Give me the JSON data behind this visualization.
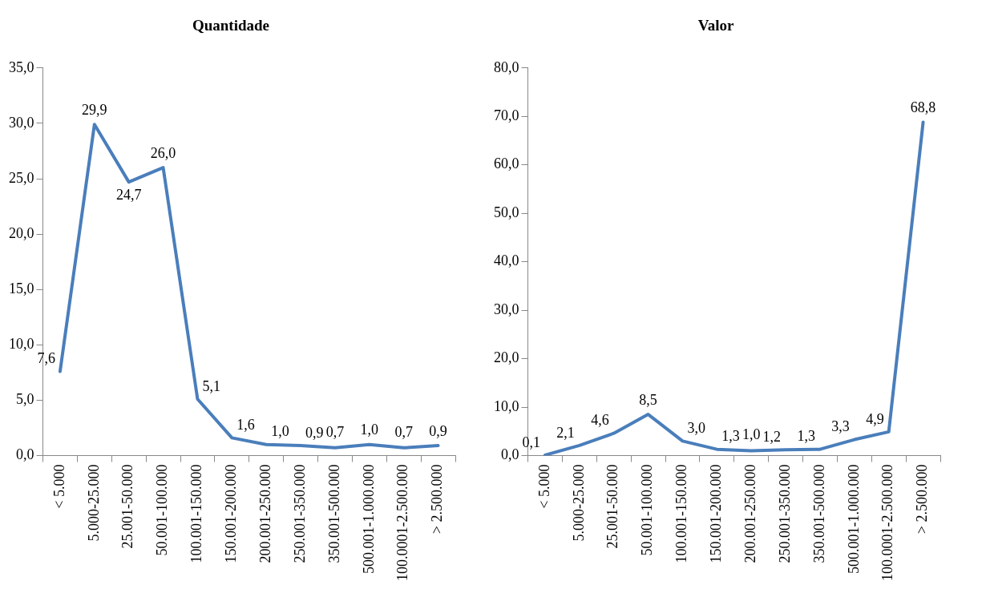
{
  "chart_data": [
    {
      "type": "line",
      "title": "Quantidade",
      "categories": [
        "< 5.000",
        "5.000-25.000",
        "25.001-50.000",
        "50.001-100.000",
        "100.001-150.000",
        "150.001-200.000",
        "200.001-250.000",
        "250.001-350.000",
        "350.001-500.000",
        "500.001-1.000.000",
        "100.0001-2.500.000",
        "> 2.500.000"
      ],
      "series": [
        {
          "color": "#4a7ebb",
          "values": [
            7.6,
            29.9,
            24.7,
            26.0,
            5.1,
            1.6,
            1.0,
            0.9,
            0.7,
            1.0,
            0.7,
            0.9
          ],
          "value_labels": [
            "7,6",
            "29,9",
            "24,7",
            "26,0",
            "5,1",
            "1,6",
            "1,0",
            "0,9",
            "0,7",
            "1,0",
            "0,7",
            "0,9"
          ]
        }
      ],
      "ylim": [
        0,
        35
      ],
      "yticks": [
        {
          "value": 0,
          "label": "0,0"
        },
        {
          "value": 5,
          "label": "5,0"
        },
        {
          "value": 10,
          "label": "10,0"
        },
        {
          "value": 15,
          "label": "15,0"
        },
        {
          "value": 20,
          "label": "20,0"
        },
        {
          "value": 25,
          "label": "25,0"
        },
        {
          "value": 30,
          "label": "30,0"
        },
        {
          "value": 35,
          "label": "35,0"
        }
      ],
      "grid": false,
      "legend": false,
      "marker": "none",
      "line_style": "solid"
    },
    {
      "type": "line",
      "title": "Valor",
      "categories": [
        "< 5.000",
        "5.000-25.000",
        "25.001-50.000",
        "50.001-100.000",
        "100.001-150.000",
        "150.001-200.000",
        "200.001-250.000",
        "250.001-350.000",
        "350.001-500.000",
        "500.001-1.000.000",
        "100.0001-2.500.000",
        "> 2.500.000"
      ],
      "series": [
        {
          "color": "#4a7ebb",
          "values": [
            0.1,
            2.1,
            4.6,
            8.5,
            3.0,
            1.3,
            1.0,
            1.2,
            1.3,
            3.3,
            4.9,
            68.8
          ],
          "value_labels": [
            "0,1",
            "2,1",
            "4,6",
            "8,5",
            "3,0",
            "1,3",
            "1,0",
            "1,2",
            "1,3",
            "3,3",
            "4,9",
            "68,8"
          ]
        }
      ],
      "ylim": [
        0,
        80
      ],
      "yticks": [
        {
          "value": 0,
          "label": "0,0"
        },
        {
          "value": 10,
          "label": "10,0"
        },
        {
          "value": 20,
          "label": "20,0"
        },
        {
          "value": 30,
          "label": "30,0"
        },
        {
          "value": 40,
          "label": "40,0"
        },
        {
          "value": 50,
          "label": "50,0"
        },
        {
          "value": 60,
          "label": "60,0"
        },
        {
          "value": 70,
          "label": "70,0"
        },
        {
          "value": 80,
          "label": "80,0"
        }
      ],
      "grid": false,
      "legend": false,
      "marker": "none",
      "line_style": "solid"
    }
  ]
}
